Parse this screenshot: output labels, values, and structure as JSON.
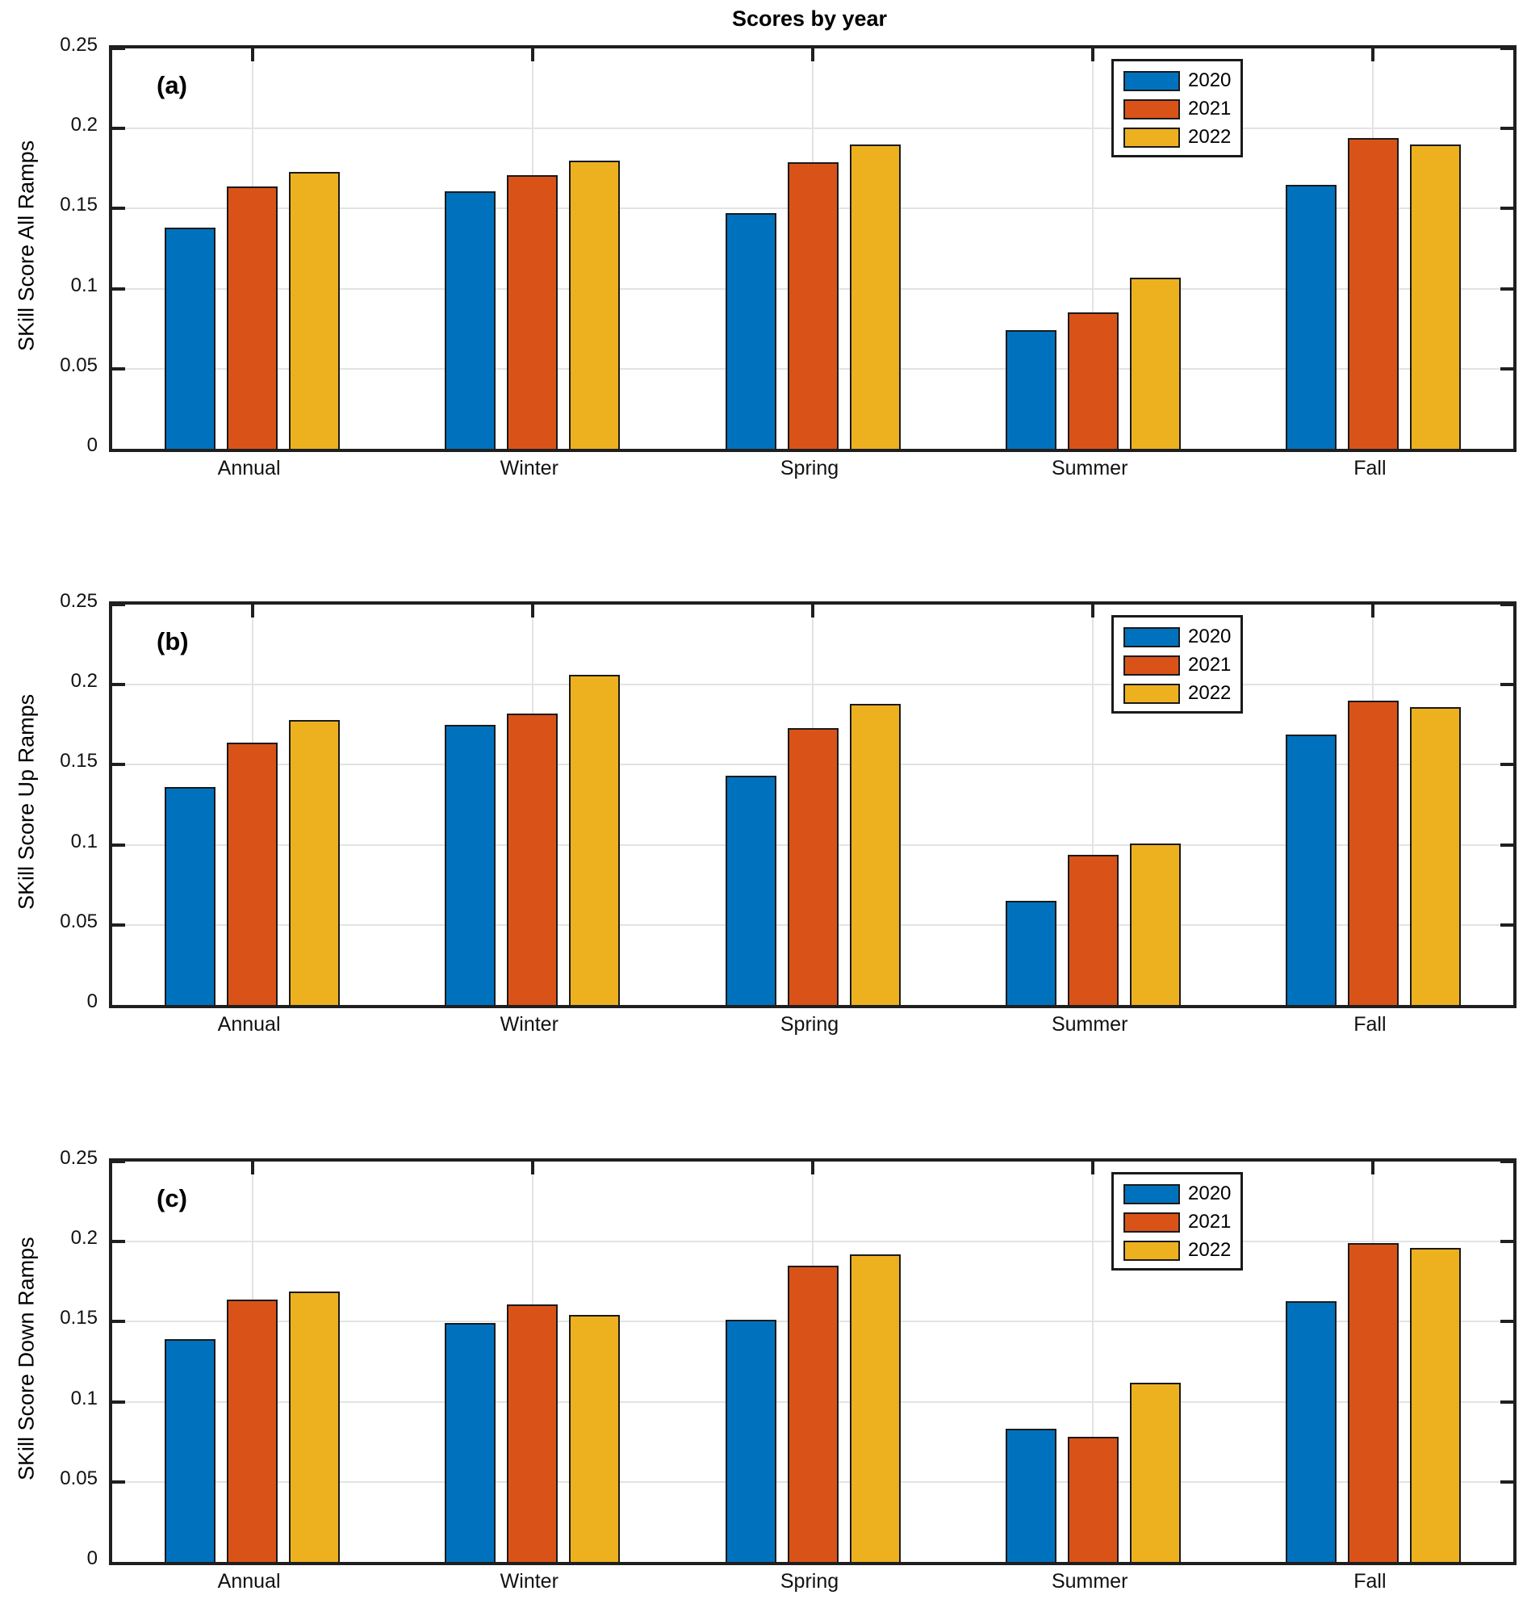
{
  "figure": {
    "title": "Scores by year"
  },
  "legend": {
    "entries": [
      "2020",
      "2021",
      "2022"
    ]
  },
  "colors": {
    "series": [
      "#0072BD",
      "#D95319",
      "#EDB120"
    ],
    "bar_edge": "#1a1a1a",
    "axis": "#1f1f1f",
    "grid": "#e3e3e3"
  },
  "chart_data": [
    {
      "type": "bar",
      "panel_label": "(a)",
      "title": "Scores by year",
      "ylabel": "SKill Score All Ramps",
      "xlabel": "",
      "categories": [
        "Annual",
        "Winter",
        "Spring",
        "Summer",
        "Fall"
      ],
      "series": [
        {
          "name": "2020",
          "values": [
            0.138,
            0.161,
            0.147,
            0.074,
            0.165
          ]
        },
        {
          "name": "2021",
          "values": [
            0.164,
            0.171,
            0.179,
            0.085,
            0.194
          ]
        },
        {
          "name": "2022",
          "values": [
            0.173,
            0.18,
            0.19,
            0.107,
            0.19
          ]
        }
      ],
      "ylim": [
        0,
        0.25
      ],
      "yticks": [
        0,
        0.05,
        0.1,
        0.15,
        0.2,
        0.25
      ],
      "ytick_labels": [
        "0",
        "0.05",
        "0.1",
        "0.15",
        "0.2",
        "0.25"
      ],
      "grid": true,
      "legend_position": "top-right"
    },
    {
      "type": "bar",
      "panel_label": "(b)",
      "title": "",
      "ylabel": "SKill Score Up Ramps",
      "xlabel": "",
      "categories": [
        "Annual",
        "Winter",
        "Spring",
        "Summer",
        "Fall"
      ],
      "series": [
        {
          "name": "2020",
          "values": [
            0.136,
            0.175,
            0.143,
            0.065,
            0.169
          ]
        },
        {
          "name": "2021",
          "values": [
            0.164,
            0.182,
            0.173,
            0.094,
            0.19
          ]
        },
        {
          "name": "2022",
          "values": [
            0.178,
            0.206,
            0.188,
            0.101,
            0.186
          ]
        }
      ],
      "ylim": [
        0,
        0.25
      ],
      "yticks": [
        0,
        0.05,
        0.1,
        0.15,
        0.2,
        0.25
      ],
      "ytick_labels": [
        "0",
        "0.05",
        "0.1",
        "0.15",
        "0.2",
        "0.25"
      ],
      "grid": true,
      "legend_position": "top-right"
    },
    {
      "type": "bar",
      "panel_label": "(c)",
      "title": "",
      "ylabel": "SKill Score Down Ramps",
      "xlabel": "",
      "categories": [
        "Annual",
        "Winter",
        "Spring",
        "Summer",
        "Fall"
      ],
      "series": [
        {
          "name": "2020",
          "values": [
            0.139,
            0.149,
            0.151,
            0.083,
            0.163
          ]
        },
        {
          "name": "2021",
          "values": [
            0.164,
            0.161,
            0.185,
            0.078,
            0.199
          ]
        },
        {
          "name": "2022",
          "values": [
            0.169,
            0.154,
            0.192,
            0.112,
            0.196
          ]
        }
      ],
      "ylim": [
        0,
        0.25
      ],
      "yticks": [
        0,
        0.05,
        0.1,
        0.15,
        0.2,
        0.25
      ],
      "ytick_labels": [
        "0",
        "0.05",
        "0.1",
        "0.15",
        "0.2",
        "0.25"
      ],
      "grid": true,
      "legend_position": "top-right"
    }
  ]
}
